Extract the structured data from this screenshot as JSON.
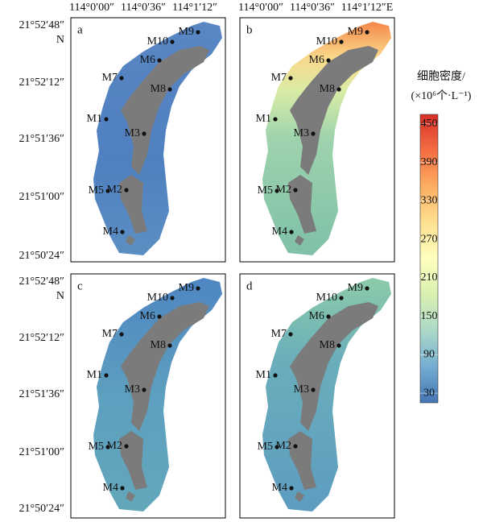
{
  "lon_labels": [
    "114°0′00″",
    "114°0′36″",
    "114°1′12″",
    "114°0′00″",
    "114°0′36″",
    "114°1′12″E"
  ],
  "lat_labels": [
    "21°52′48″",
    "21°52′12″",
    "21°51′36″",
    "21°51′00″",
    "21°50′24″"
  ],
  "north": "N",
  "panels": [
    "a",
    "b",
    "c",
    "d"
  ],
  "stations": [
    "M1",
    "M2",
    "M3",
    "M4",
    "M5",
    "M6",
    "M7",
    "M8",
    "M9",
    "M10"
  ],
  "colorbar": {
    "title": "细胞密度/",
    "unit": "(×10⁶个·L⁻¹)",
    "lim": [
      15,
      465
    ],
    "ticks": [
      30,
      90,
      150,
      210,
      270,
      330,
      390,
      450
    ],
    "colors": [
      "#4575b4",
      "#74add1",
      "#abd9c8",
      "#d9efb0",
      "#ffffbf",
      "#fee090",
      "#fdae61",
      "#f46d43",
      "#d73027"
    ]
  }
}
